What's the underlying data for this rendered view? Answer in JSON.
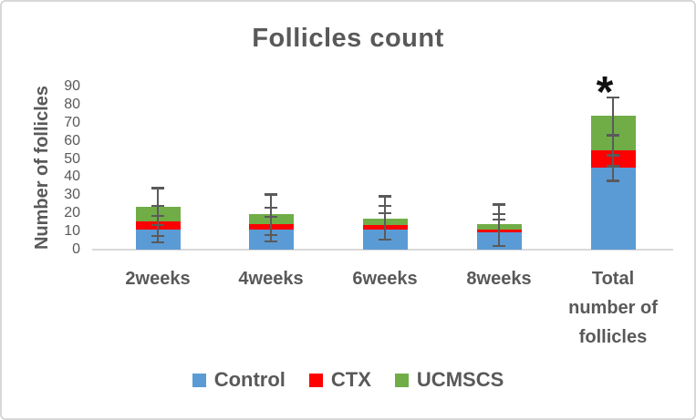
{
  "figure": {
    "title": "Follicles count",
    "y_axis_title": "Number of follicles",
    "significance_marker": "*"
  },
  "colors": {
    "control_blue": "#5B9BD5",
    "ctx_red": "#FF0000",
    "ucmscs_green": "#70AD47",
    "text_gray": "#595959",
    "axis_line_gray": "#D9D9D9",
    "frame_border_gray": "#D8D8D8",
    "error_bar_gray": "#5A5A5A",
    "asterisk_black": "#111111"
  },
  "chart_data": {
    "type": "bar",
    "stacked": true,
    "title": "Follicles count",
    "xlabel": "",
    "ylabel": "Number of follicles",
    "ylim": [
      0,
      90
    ],
    "ytick_step": 10,
    "grid": false,
    "legend_position": "bottom",
    "categories": [
      "2weeks",
      "4weeks",
      "6weeks",
      "8weeks",
      "Total number of follicles"
    ],
    "series": [
      {
        "name": "Control",
        "color": "#5B9BD5",
        "values": [
          11,
          11,
          11,
          9.5,
          45
        ]
      },
      {
        "name": "CTX",
        "color": "#FF0000",
        "values": [
          4.5,
          3,
          2.5,
          1.5,
          10
        ]
      },
      {
        "name": "UCMSCS",
        "color": "#70AD47",
        "values": [
          8,
          5.5,
          3.5,
          3,
          19
        ]
      }
    ],
    "error_bars": [
      {
        "category": "2weeks",
        "line": [
          4,
          34
        ],
        "caps": [
          4,
          7.5,
          13.5,
          18.5,
          24,
          34
        ]
      },
      {
        "category": "4weeks",
        "line": [
          4.5,
          30.5
        ],
        "caps": [
          4.5,
          8,
          18,
          23,
          30.5
        ]
      },
      {
        "category": "6weeks",
        "line": [
          5.5,
          29.5
        ],
        "caps": [
          5.5,
          20,
          24,
          29.5
        ]
      },
      {
        "category": "8weeks",
        "line": [
          2,
          25
        ],
        "caps": [
          2,
          16.5,
          19.5,
          25
        ]
      },
      {
        "category": "Total number of follicles",
        "line": [
          38,
          84
        ],
        "caps": [
          38,
          46,
          52,
          63,
          84
        ]
      }
    ],
    "annotations": [
      {
        "text": "*",
        "category": "Total number of follicles"
      }
    ]
  }
}
